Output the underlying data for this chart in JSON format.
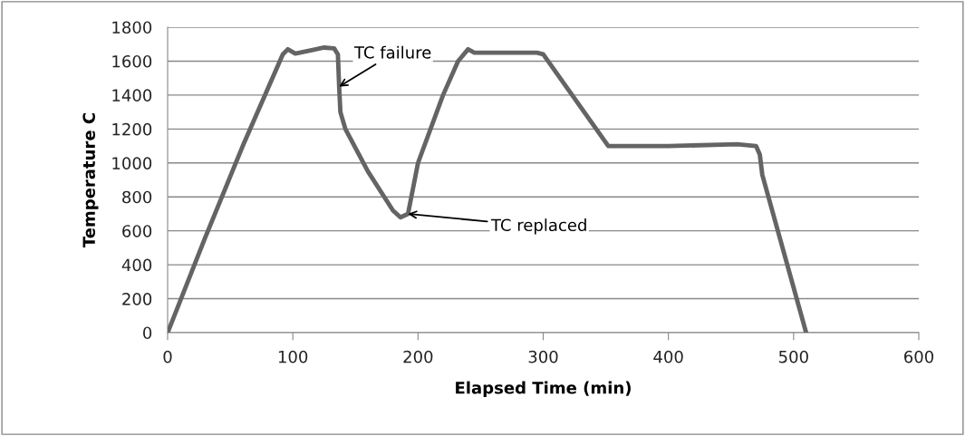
{
  "chart_data": {
    "type": "line",
    "xlabel": "Elapsed Time (min)",
    "ylabel": "Temperature C",
    "xlim": [
      0,
      600
    ],
    "xticks": [
      0,
      100,
      200,
      300,
      400,
      500,
      600
    ],
    "ylim": [
      0,
      1800
    ],
    "yticks": [
      0,
      200,
      400,
      600,
      800,
      1000,
      1200,
      1400,
      1600,
      1800
    ],
    "grid": "y",
    "legend": false,
    "marker": "none",
    "line_style": "solid",
    "series": [
      {
        "color": "#646464",
        "x": [
          0,
          30,
          60,
          92,
          96,
          102,
          115,
          125,
          133,
          136,
          137,
          138,
          142,
          160,
          180,
          186,
          192,
          196,
          200,
          220,
          232,
          240,
          245,
          295,
          300,
          352,
          400,
          455,
          470,
          473,
          475,
          510
        ],
        "values": [
          0,
          560,
          1100,
          1640,
          1670,
          1645,
          1665,
          1680,
          1675,
          1640,
          1450,
          1300,
          1200,
          950,
          720,
          680,
          700,
          850,
          1000,
          1400,
          1600,
          1670,
          1650,
          1650,
          1640,
          1100,
          1100,
          1110,
          1100,
          1050,
          930,
          0
        ]
      }
    ],
    "annotations": [
      {
        "text": "TC failure",
        "x": 137,
        "y": 1450
      },
      {
        "text": "TC replaced",
        "x": 192,
        "y": 700
      }
    ]
  }
}
